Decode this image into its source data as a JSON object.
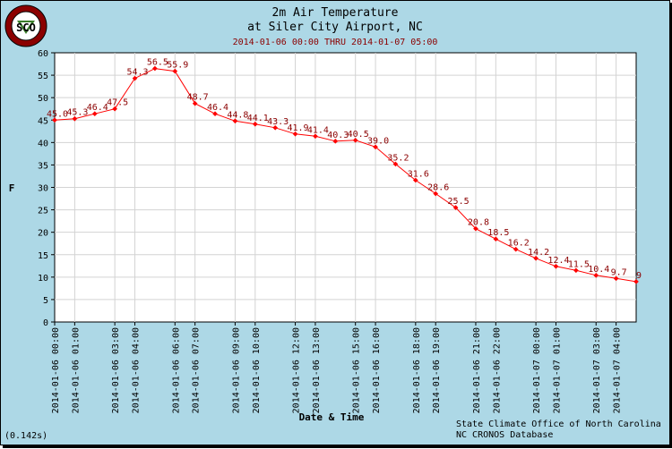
{
  "header": {
    "title": "2m Air Temperature",
    "subtitle": "at Siler City Airport, NC",
    "range": "2014-01-06 00:00 THRU 2014-01-07 05:00"
  },
  "logo": {
    "text": "SCO",
    "ring_text": "STATE CLIMATE OFFICE"
  },
  "footer": {
    "credit_line1": "State Climate Office of North Carolina",
    "credit_line2": "NC CRONOS Database",
    "timing": "(0.142s)"
  },
  "colors": {
    "background": "#add8e6",
    "plot_bg": "#ffffff",
    "series": "#ff0000",
    "label": "#8b0000"
  },
  "chart_data": {
    "type": "line",
    "xlabel": "Date & Time",
    "ylabel": "F",
    "ylim": [
      0,
      60
    ],
    "yticks": [
      0,
      5,
      10,
      15,
      20,
      25,
      30,
      35,
      40,
      45,
      50,
      55,
      60
    ],
    "grid": true,
    "x_hours": [
      0,
      1,
      2,
      3,
      4,
      5,
      6,
      7,
      8,
      9,
      10,
      11,
      12,
      13,
      14,
      15,
      16,
      17,
      18,
      19,
      20,
      21,
      22,
      23,
      24,
      25,
      26,
      27,
      28,
      29
    ],
    "values": [
      45.0,
      45.3,
      46.4,
      47.5,
      54.3,
      56.5,
      55.9,
      48.7,
      46.4,
      44.8,
      44.1,
      43.3,
      41.9,
      41.4,
      40.3,
      40.5,
      39.0,
      35.2,
      31.6,
      28.6,
      25.5,
      20.8,
      18.5,
      16.2,
      14.2,
      12.4,
      11.5,
      10.4,
      9.7,
      9
    ],
    "labels": [
      "45.0",
      "45.3",
      "46.4",
      "47.5",
      "54.3",
      "56.5",
      "55.9",
      "48.7",
      "46.4",
      "44.8",
      "44.1",
      "43.3",
      "41.9",
      "41.4",
      "40.3",
      "40.5",
      "39.0",
      "35.2",
      "31.6",
      "28.6",
      "25.5",
      "20.8",
      "18.5",
      "16.2",
      "14.2",
      "12.4",
      "11.5",
      "10.4",
      "9.7",
      "9"
    ],
    "xtick_labels": [
      "2014-01-06 00:00",
      "2014-01-06 01:00",
      "2014-01-06 03:00",
      "2014-01-06 04:00",
      "2014-01-06 06:00",
      "2014-01-06 07:00",
      "2014-01-06 09:00",
      "2014-01-06 10:00",
      "2014-01-06 12:00",
      "2014-01-06 13:00",
      "2014-01-06 15:00",
      "2014-01-06 16:00",
      "2014-01-06 18:00",
      "2014-01-06 19:00",
      "2014-01-06 21:00",
      "2014-01-06 22:00",
      "2014-01-07 00:00",
      "2014-01-07 01:00",
      "2014-01-07 03:00",
      "2014-01-07 04:00"
    ]
  }
}
